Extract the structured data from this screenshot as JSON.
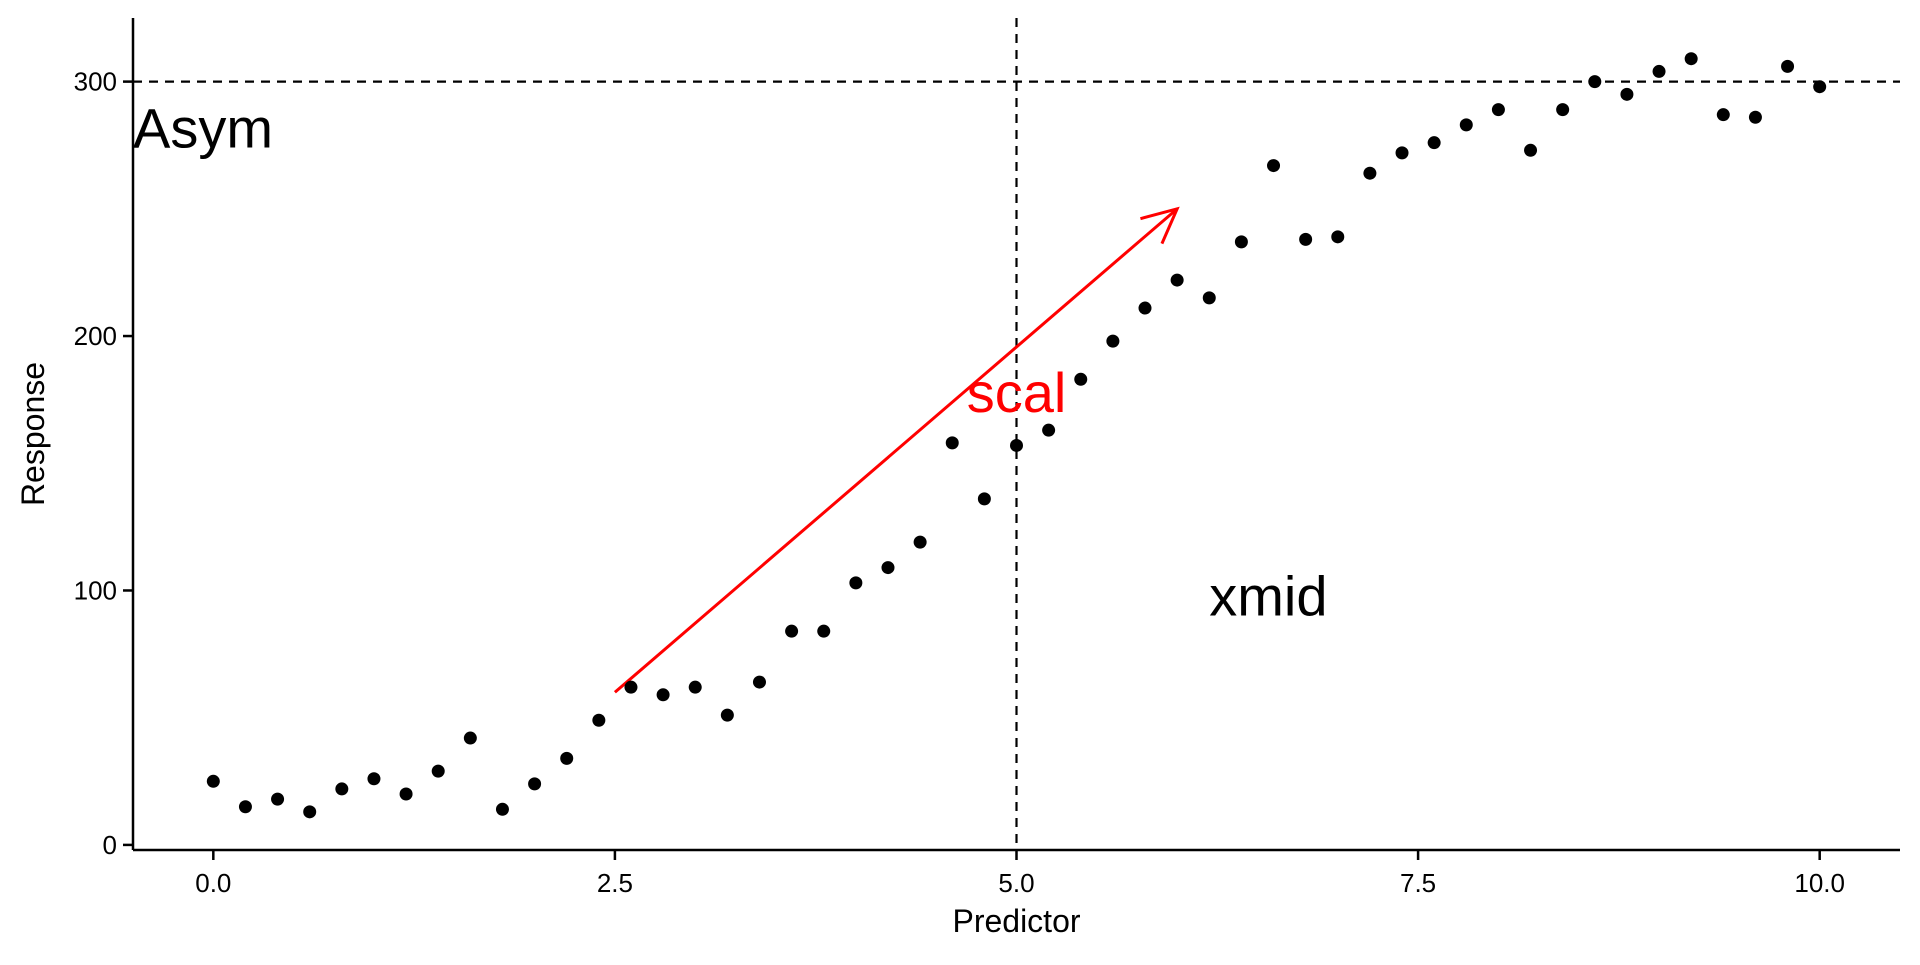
{
  "chart_data": {
    "type": "scatter",
    "title": "",
    "xlabel": "Predictor",
    "ylabel": "Response",
    "xlim": [
      -0.5,
      10.5
    ],
    "ylim": [
      -2,
      325
    ],
    "x_ticks": [
      0,
      2.5,
      5,
      7.5,
      10
    ],
    "x_tick_labels": [
      "0.0",
      "2.5",
      "5.0",
      "7.5",
      "10.0"
    ],
    "y_ticks": [
      0,
      100,
      200,
      300
    ],
    "y_tick_labels": [
      "0",
      "100",
      "200",
      "300"
    ],
    "grid": false,
    "point_color": "#000000",
    "x": [
      0.0,
      0.2,
      0.4,
      0.6,
      0.8,
      1.0,
      1.2,
      1.4,
      1.6,
      1.8,
      2.0,
      2.2,
      2.4,
      2.6,
      2.8,
      3.0,
      3.2,
      3.4,
      3.6,
      3.8,
      4.0,
      4.2,
      4.4,
      4.6,
      4.8,
      5.0,
      5.2,
      5.4,
      5.6,
      5.8,
      6.0,
      6.2,
      6.4,
      6.6,
      6.8,
      7.0,
      7.2,
      7.4,
      7.6,
      7.8,
      8.0,
      8.2,
      8.4,
      8.6,
      8.8,
      9.0,
      9.2,
      9.4,
      9.6,
      9.8,
      10.0
    ],
    "y": [
      25,
      15,
      18,
      13,
      22,
      26,
      20,
      29,
      42,
      14,
      24,
      34,
      49,
      62,
      59,
      62,
      51,
      64,
      84,
      84,
      103,
      109,
      119,
      158,
      136,
      157,
      163,
      183,
      198,
      211,
      222,
      215,
      237,
      267,
      238,
      239,
      264,
      272,
      276,
      283,
      289,
      273,
      289,
      300,
      295,
      304,
      309,
      287,
      286,
      306,
      298
    ],
    "reference_lines": {
      "horizontal_y": 300,
      "vertical_x": 5.0,
      "style": "dashed",
      "color": "#000000"
    },
    "annotations": [
      {
        "text": "Asym",
        "x": -0.5,
        "y": 282,
        "color": "#000000"
      },
      {
        "text": "xmid",
        "x": 6.2,
        "y": 98,
        "color": "#000000"
      },
      {
        "text": "scal",
        "x": 5.0,
        "y": 178,
        "color": "#ff0000"
      }
    ],
    "arrow": {
      "x_start": 2.5,
      "y_start": 60,
      "x_end": 6.0,
      "y_end": 250,
      "color": "#ff0000"
    }
  }
}
